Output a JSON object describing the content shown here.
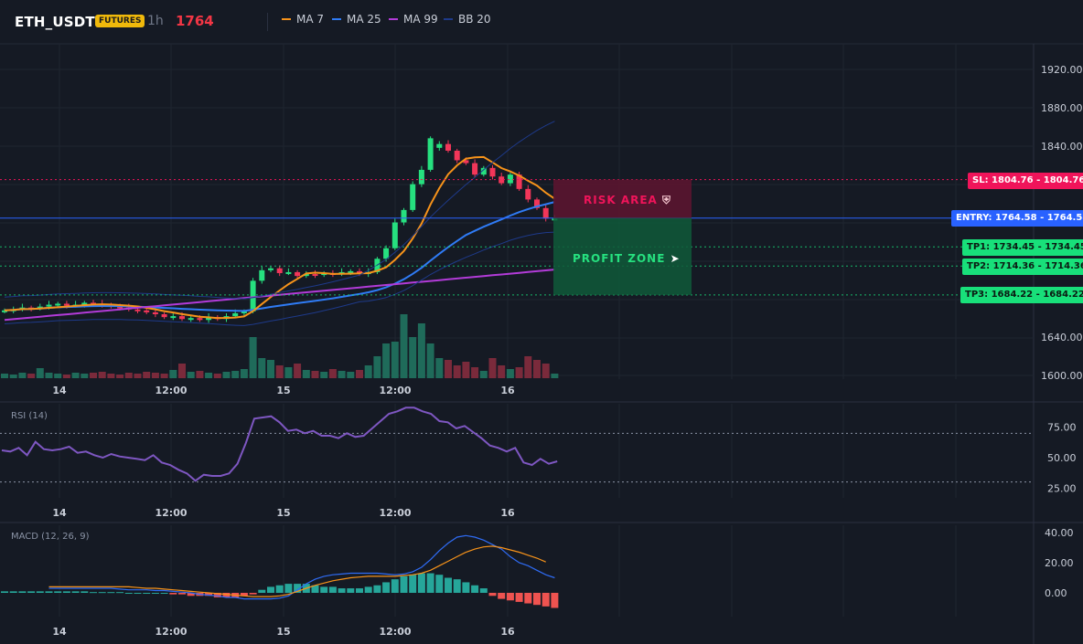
{
  "header": {
    "symbol": "ETH_USDT",
    "badge": "FUTURES",
    "timeframe": "1h",
    "last_price": "1764",
    "indicators": [
      {
        "label": "MA 7",
        "color": "#f7931a"
      },
      {
        "label": "MA 25",
        "color": "#2f7bf5"
      },
      {
        "label": "MA 99",
        "color": "#b23bd8"
      },
      {
        "label": "BB 20",
        "color": "#1e3a8a"
      }
    ]
  },
  "colors": {
    "up": "#26e07f",
    "down": "#f23659",
    "background": "#151a24",
    "sl": "#f0145a",
    "entry": "#2962ff",
    "tp": "#18e07a"
  },
  "price_axis": {
    "ticks": [
      "1920.00",
      "1880.00",
      "1840.00",
      "1640.00",
      "1600.00"
    ]
  },
  "time_axis": {
    "ticks": [
      "14",
      "12:00",
      "15",
      "12:00",
      "16"
    ]
  },
  "levels": {
    "sl": {
      "label": "SL: 1804.76",
      "value": "1804.76"
    },
    "entry": {
      "label": "ENTRY: 1764.58",
      "value": "1764.58"
    },
    "tp1": {
      "label": "TP1: 1734.45",
      "value": "1734.45"
    },
    "tp2": {
      "label": "TP2: 1714.36",
      "value": "1714.36"
    },
    "tp3": {
      "label": "TP3: 1684.22",
      "value": "1684.22"
    }
  },
  "zones": {
    "risk_label": "RISK AREA",
    "risk_icon": "shield-icon",
    "profit_label": "PROFIT ZONE",
    "profit_icon": "rocket-icon"
  },
  "rsi": {
    "title": "RSI (14)",
    "ticks": [
      "75.00",
      "50.00",
      "25.00"
    ]
  },
  "macd": {
    "title": "MACD (12, 26, 9)",
    "ticks": [
      "40.00",
      "20.00",
      "0.00"
    ]
  }
}
